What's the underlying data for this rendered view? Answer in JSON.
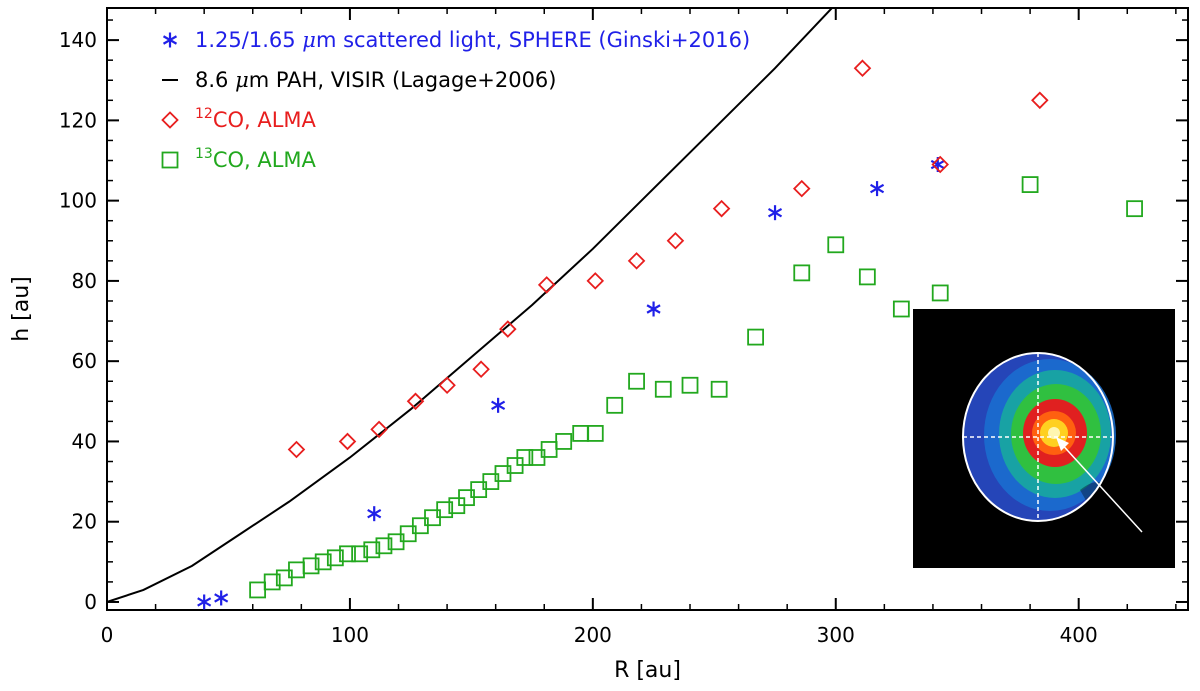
{
  "chart_data": {
    "type": "scatter",
    "title": "",
    "xlabel": "R [au]",
    "ylabel": "h [au]",
    "xlim": [
      0,
      445
    ],
    "ylim": [
      -2,
      148
    ],
    "xticks": [
      0,
      100,
      200,
      300,
      400
    ],
    "yticks": [
      0,
      20,
      40,
      60,
      80,
      100,
      120,
      140
    ],
    "xtick_labels": [
      "0",
      "100",
      "200",
      "300",
      "400"
    ],
    "ytick_labels": [
      "0",
      "20",
      "40",
      "60",
      "80",
      "100",
      "120",
      "140"
    ],
    "legend_position": "top-left",
    "series": [
      {
        "name": "1.25/1.65 μm scattered light, SPHERE (Ginski+2016)",
        "legend_pre": "1.25/1.65 ",
        "legend_mu": "μ",
        "legend_post": "m scattered light, SPHERE (Ginski+2016)",
        "marker": "asterisk",
        "color": "#2020e8",
        "x": [
          40,
          47,
          110,
          161,
          225,
          275,
          317,
          342
        ],
        "y": [
          0,
          1,
          22,
          49,
          73,
          97,
          103,
          109
        ]
      },
      {
        "name": "8.6 μm PAH, VISIR (Lagage+2006)",
        "legend_pre": "8.6 ",
        "legend_mu": "μ",
        "legend_post": "m PAH, VISIR (Lagage+2006)",
        "marker": "line",
        "color": "#000000",
        "x": [
          0,
          15,
          35,
          55,
          75,
          100,
          125,
          150,
          175,
          200,
          225,
          250,
          275,
          300
        ],
        "y": [
          0,
          3,
          9,
          17,
          25,
          36,
          48,
          61,
          74,
          88,
          103,
          118,
          133,
          149
        ]
      },
      {
        "name": "12CO, ALMA",
        "legend_sup": "12",
        "legend_post": "CO, ALMA",
        "marker": "diamond",
        "color": "#e81e1e",
        "x": [
          78,
          99,
          112,
          127,
          140,
          154,
          165,
          181,
          201,
          218,
          234,
          253,
          286,
          311,
          343,
          384
        ],
        "y": [
          38,
          40,
          43,
          50,
          54,
          58,
          68,
          79,
          80,
          85,
          90,
          98,
          103,
          133,
          109,
          125
        ]
      },
      {
        "name": "13CO, ALMA",
        "legend_sup": "13",
        "legend_post": "CO, ALMA",
        "marker": "square",
        "color": "#22a81e",
        "x": [
          62,
          68,
          73,
          78,
          84,
          89,
          94,
          99,
          104,
          109,
          114,
          119,
          124,
          129,
          134,
          139,
          144,
          148,
          153,
          158,
          163,
          168,
          172,
          177,
          182,
          188,
          195,
          201,
          209,
          218,
          229,
          240,
          252,
          267,
          286,
          300,
          313,
          327,
          343,
          380,
          423
        ],
        "y": [
          3,
          5,
          6,
          8,
          9,
          10,
          11,
          12,
          12,
          13,
          14,
          15,
          17,
          19,
          21,
          23,
          24,
          26,
          28,
          30,
          32,
          34,
          36,
          36,
          38,
          40,
          42,
          42,
          49,
          55,
          53,
          54,
          53,
          66,
          82,
          89,
          81,
          73,
          77,
          104,
          98
        ]
      }
    ]
  }
}
